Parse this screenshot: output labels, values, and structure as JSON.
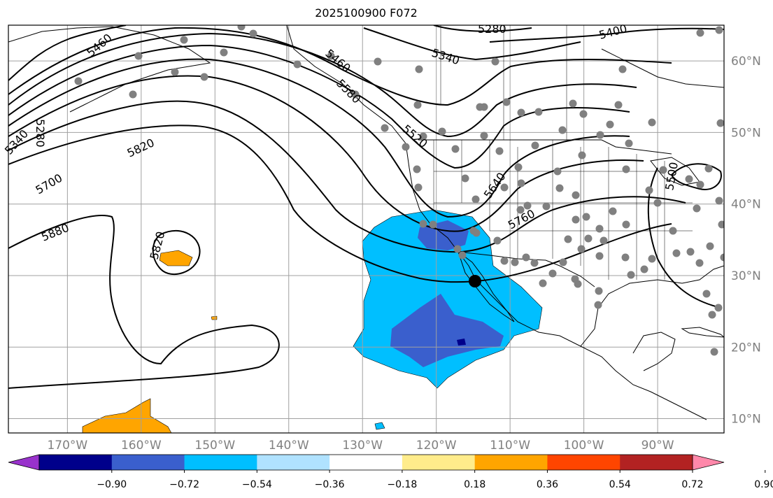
{
  "title": "2025100900 F072",
  "map": {
    "projection": "plate carree",
    "lon_range": [
      -178,
      -81
    ],
    "lat_range": [
      8,
      65
    ],
    "lon_ticks": [
      "170°W",
      "160°W",
      "150°W",
      "140°W",
      "130°W",
      "120°W",
      "110°W",
      "100°W",
      "90°W"
    ],
    "lat_ticks": [
      "60°N",
      "50°N",
      "40°N",
      "30°N",
      "20°N",
      "10°N"
    ],
    "gridlines": true,
    "colors": {
      "gridline": "#a0a0a0",
      "coastline": "#000000",
      "contour": "#000000",
      "station_dot": "#808080",
      "center_marker": "#000000"
    }
  },
  "contour_labels": [
    "5460",
    "5280",
    "5340",
    "5400",
    "5460",
    "5520",
    "5580",
    "5640",
    "5760",
    "5700",
    "5820",
    "5820",
    "5880",
    "5280",
    "5340",
    "5500"
  ],
  "marker": {
    "name": "storm-center",
    "lon": -115.3,
    "lat": 29.2
  },
  "colorbar": {
    "orientation": "horizontal",
    "extend": "both",
    "levels": [
      "-0.90",
      "-0.72",
      "-0.54",
      "-0.36",
      "-0.18",
      "0.18",
      "0.36",
      "0.54",
      "0.72",
      "0.90"
    ],
    "colors": [
      "#9932CC",
      "#00008B",
      "#3A5FCD",
      "#00BFFF",
      "#B0E2FF",
      "#FFFFFF",
      "#FFEC8B",
      "#FFA500",
      "#FF4500",
      "#B22222",
      "#FF88AA"
    ]
  }
}
